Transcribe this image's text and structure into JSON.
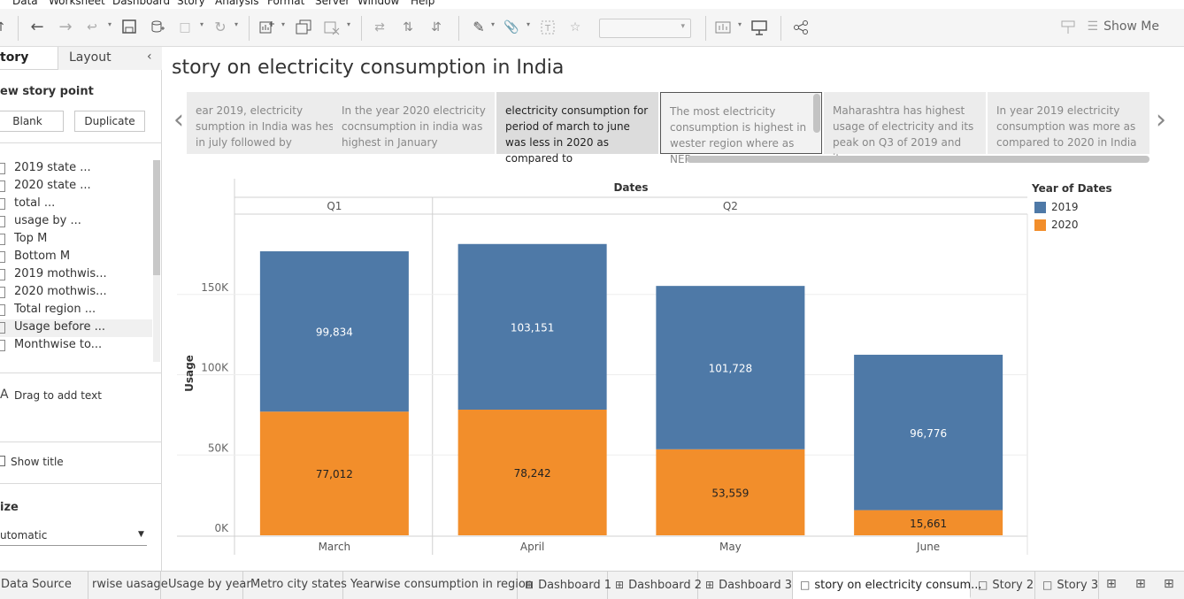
{
  "menu": [
    "Data",
    "Worksheet",
    "Dashboard",
    "Story",
    "Analysis",
    "Format",
    "Server",
    "Window",
    "Help"
  ],
  "toolbar": {
    "show_me_label": "Show Me"
  },
  "left_pane": {
    "tab_story": "tory",
    "tab_layout": "Layout",
    "new_story_point": "ew story point",
    "blank_label": "Blank",
    "duplicate_label": "Duplicate",
    "sheets": [
      "2019  state ...",
      "2020 state ...",
      "total ...",
      "usage by ...",
      "Top M",
      "Bottom M",
      "2019 mothwis...",
      "2020 mothwis...",
      "Total region ...",
      "Usage before ...",
      "Monthwise to..."
    ],
    "drag_text": "Drag to add text",
    "show_title": "Show title",
    "size_heading": "ize",
    "size_value": "utomatic"
  },
  "story": {
    "title": "story on electricity consumption in India",
    "points": [
      "ear 2019, electricity sumption in India was hest in july followed by",
      "In the year 2020 electricity cocnsumption in india was highest in January",
      "electricity consumption for period of march to june was less in 2020 as compared to",
      "The most electricity consumption is highest in wester region where as NER",
      "Maharashtra has highest usage of electricity and its peak on Q3 of 2019 and its",
      "In year 2019 electricity consumption was more as compared to 2020 in India"
    ],
    "selected_index": 2,
    "current_index": 3
  },
  "chart_data": {
    "type": "bar",
    "stacked": true,
    "header": "Dates",
    "quarters": [
      {
        "label": "Q1",
        "months": [
          "March"
        ]
      },
      {
        "label": "Q2",
        "months": [
          "April",
          "May",
          "June"
        ]
      }
    ],
    "categories": [
      "March",
      "April",
      "May",
      "June"
    ],
    "series": [
      {
        "name": "2020",
        "color": "#f28e2b",
        "values": [
          77012,
          78242,
          53559,
          15661
        ],
        "labels": [
          "77,012",
          "78,242",
          "53,559",
          "15,661"
        ]
      },
      {
        "name": "2019",
        "color": "#4e79a7",
        "values": [
          99834,
          103151,
          101728,
          96776
        ],
        "labels": [
          "99,834",
          "103,151",
          "101,728",
          "96,776"
        ]
      }
    ],
    "ylabel": "Usage",
    "yticks": [
      "0K",
      "50K",
      "100K",
      "150K"
    ],
    "ylim": [
      0,
      200000
    ],
    "legend": {
      "title": "Year of Dates",
      "items": [
        "2019",
        "2020"
      ],
      "placement": "right"
    }
  },
  "bottom_tabs": [
    {
      "label": "Data Source",
      "icon": "database-icon"
    },
    {
      "label": "rwise uasage",
      "icon": ""
    },
    {
      "label": "Usage by year",
      "icon": ""
    },
    {
      "label": "Metro city states",
      "icon": ""
    },
    {
      "label": "Yearwise consumption in region",
      "icon": ""
    },
    {
      "label": "Dashboard 1",
      "icon": "dashboard-icon"
    },
    {
      "label": "Dashboard 2",
      "icon": "dashboard-icon"
    },
    {
      "label": "Dashboard 3",
      "icon": "dashboard-icon"
    },
    {
      "label": "story on electricity consum...",
      "icon": "story-icon"
    },
    {
      "label": "Story 2",
      "icon": "story-icon"
    },
    {
      "label": "Story 3",
      "icon": "story-icon"
    }
  ],
  "active_bottom_tab": 8
}
